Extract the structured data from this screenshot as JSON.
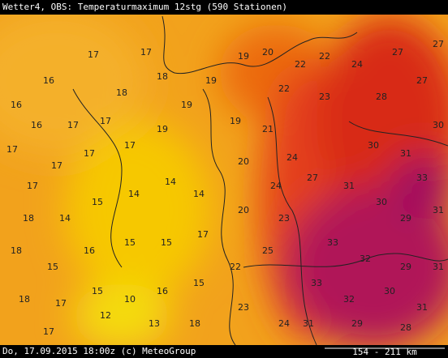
{
  "header": {
    "title": "Wetter4, OBS: Temperaturmaximum 12stg (590 Stationen)"
  },
  "footer": {
    "timestamp": "Do, 17.09.2015 18:00z (c) MeteoGroup",
    "scale": "154 - 211 km"
  },
  "stations": [
    16,
    16,
    17,
    17,
    17,
    16,
    17,
    17,
    17,
    17,
    17,
    17,
    19,
    19,
    19,
    19,
    18,
    18,
    18,
    14,
    15,
    14,
    14,
    14,
    18,
    15,
    16,
    15,
    15,
    17,
    18,
    17,
    15,
    10,
    16,
    15,
    17,
    12,
    13,
    18,
    20,
    22,
    22,
    24,
    22,
    23,
    19,
    21,
    24,
    20,
    24,
    27,
    20,
    23,
    22,
    25,
    23,
    24,
    27,
    27,
    28,
    27,
    30,
    30,
    31,
    33,
    31,
    30,
    29,
    31,
    33,
    32,
    29,
    31,
    33,
    32,
    30,
    31,
    31,
    29,
    28
  ]
}
